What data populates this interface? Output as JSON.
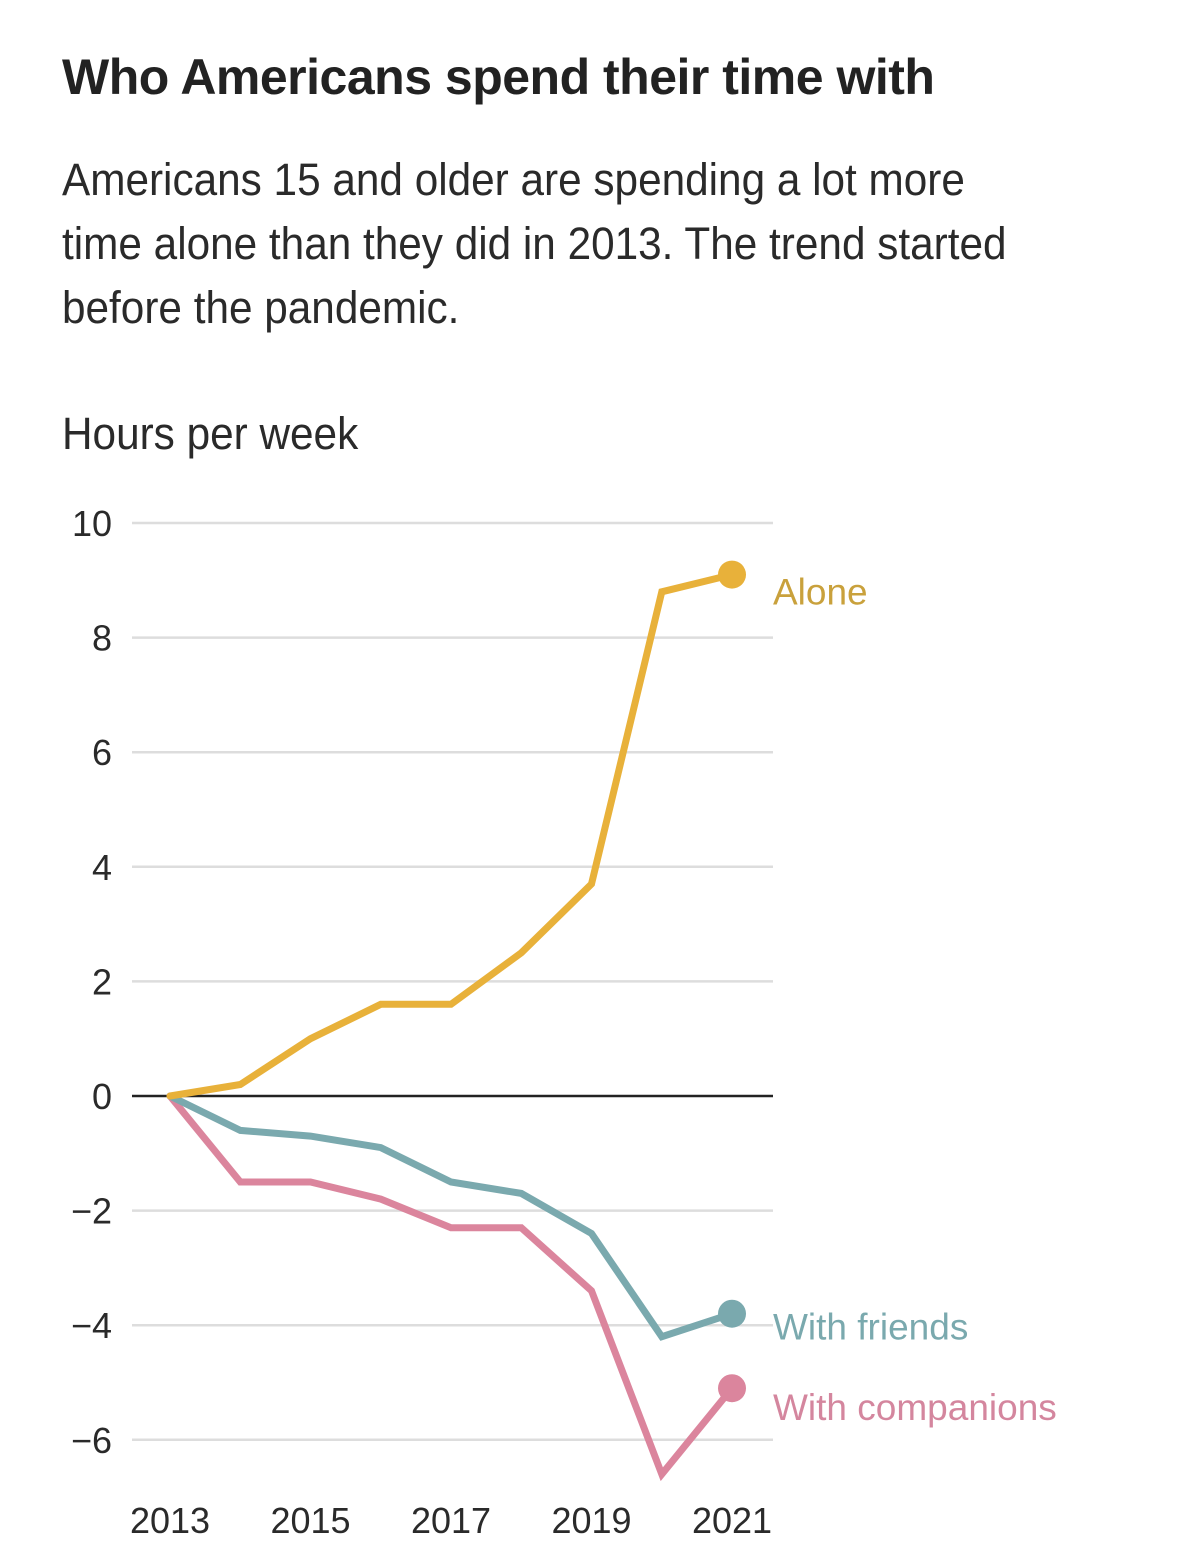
{
  "header": {
    "title": "Who Americans spend their time with",
    "subtitle": "Americans 15 and older are spending a lot more time alone than they did in 2013. The trend started before the pandemic."
  },
  "chart_data": {
    "type": "line",
    "title": "Who Americans spend their time with",
    "subtitle": "Americans 15 and older are spending a lot more time alone than they did in 2013. The trend started before the pandemic.",
    "ylabel": "Hours per week",
    "xlabel": "",
    "x": [
      2013,
      2014,
      2015,
      2016,
      2017,
      2018,
      2019,
      2020,
      2021
    ],
    "xticks": [
      "2013",
      "2015",
      "2017",
      "2019",
      "2021"
    ],
    "yticks": [
      "10",
      "8",
      "6",
      "4",
      "2",
      "0",
      "−2",
      "−4",
      "−6"
    ],
    "ytick_values": [
      10,
      8,
      6,
      4,
      2,
      0,
      -2,
      -4,
      -6
    ],
    "ylim": [
      -7,
      10
    ],
    "xlim": [
      2013,
      2021
    ],
    "grid": true,
    "legend": "direct-labels-right",
    "series": [
      {
        "name": "Alone",
        "color": "#e8b13a",
        "label_color": "#c9a13c",
        "values": [
          0,
          0.2,
          1.0,
          1.6,
          1.6,
          2.5,
          3.7,
          8.8,
          9.1
        ]
      },
      {
        "name": "With friends",
        "color": "#7aa9ae",
        "label_color": "#7aa9ae",
        "values": [
          0,
          -0.6,
          -0.7,
          -0.9,
          -1.5,
          -1.7,
          -2.4,
          -4.2,
          -3.8
        ]
      },
      {
        "name": "With companions",
        "color": "#db859d",
        "label_color": "#d4869e",
        "values": [
          0,
          -1.5,
          -1.5,
          -1.8,
          -2.3,
          -2.3,
          -3.4,
          -6.6,
          -5.1
        ]
      }
    ]
  }
}
